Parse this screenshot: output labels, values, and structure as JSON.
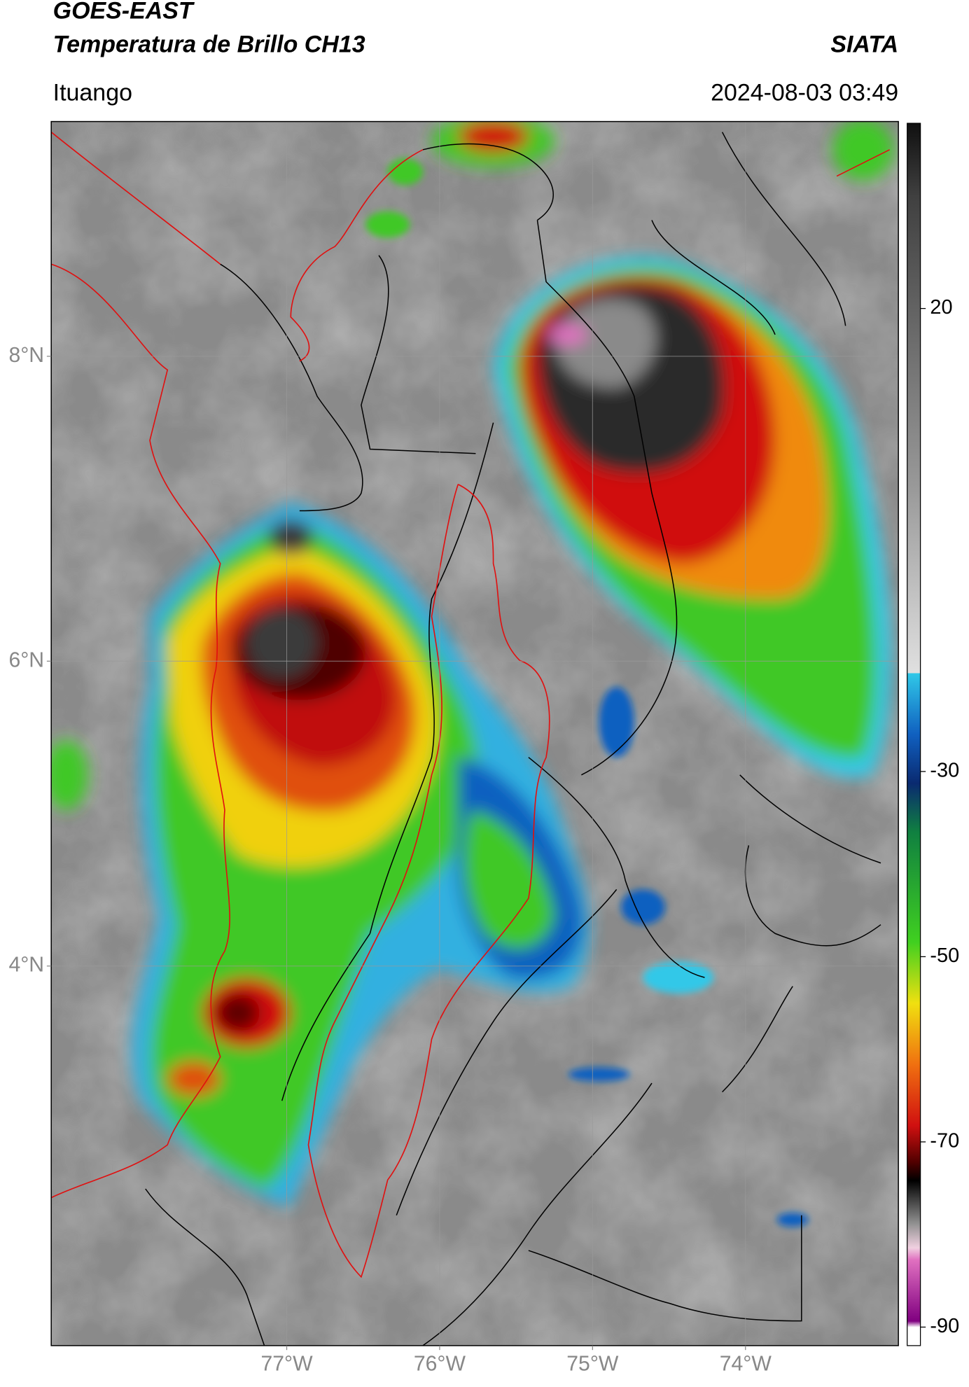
{
  "header": {
    "title": "GOES-EAST",
    "subtitle": "Temperatura de Brillo CH13",
    "source": "SIATA",
    "location": "Ituango",
    "datetime": "2024-08-03 03:49"
  },
  "map": {
    "lonlim": [
      -78.54,
      -73.0
    ],
    "latlim": [
      1.51,
      9.54
    ],
    "lonticks": [
      {
        "value": -77,
        "label": "77°W"
      },
      {
        "value": -76,
        "label": "76°W"
      },
      {
        "value": -75,
        "label": "75°W"
      },
      {
        "value": -74,
        "label": "74°W"
      }
    ],
    "latticks": [
      {
        "value": 8,
        "label": "8°N"
      },
      {
        "value": 6,
        "label": "6°N"
      },
      {
        "value": 4,
        "label": "4°N"
      }
    ],
    "grid": true
  },
  "colorbar": {
    "lim": [
      -92,
      40
    ],
    "ticks": [
      20,
      -30,
      -50,
      -70,
      -90
    ]
  }
}
